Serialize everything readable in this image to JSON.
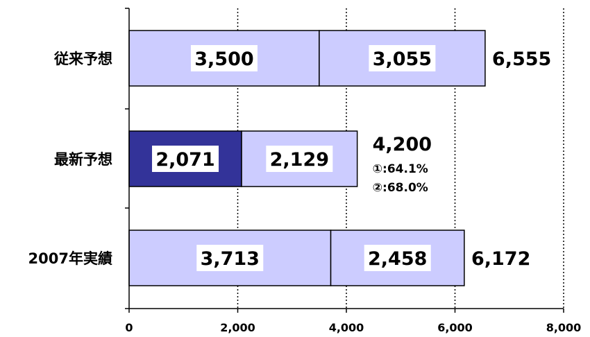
{
  "chart_data": {
    "type": "bar",
    "orientation": "horizontal",
    "stacked": true,
    "title": "",
    "xlabel": "",
    "ylabel": "",
    "xlim": [
      0,
      8000
    ],
    "x_ticks": [
      0,
      2000,
      4000,
      6000,
      8000
    ],
    "x_tick_labels": [
      "0",
      "2,000",
      "4,000",
      "6,000",
      "8,000"
    ],
    "grid": "vertical dotted",
    "legend": "none",
    "categories": [
      "従来予想",
      "最新予想",
      "2007年実績"
    ],
    "series": [
      {
        "values": [
          3500,
          2071,
          3713
        ],
        "labels": [
          "3,500",
          "2,071",
          "3,713"
        ],
        "colors": [
          "#ccccff",
          "#333399",
          "#ccccff"
        ]
      },
      {
        "values": [
          3055,
          2129,
          2458
        ],
        "labels": [
          "3,055",
          "2,129",
          "2,458"
        ],
        "colors": [
          "#ccccff",
          "#ccccff",
          "#ccccff"
        ]
      }
    ],
    "totals": [
      6555,
      4200,
      6172
    ],
    "total_labels": [
      "6,555",
      "4,200",
      "6,172"
    ],
    "annotations": [
      {
        "category": "最新予想",
        "lines": [
          "①:64.1%",
          "②:68.0%"
        ]
      }
    ]
  }
}
